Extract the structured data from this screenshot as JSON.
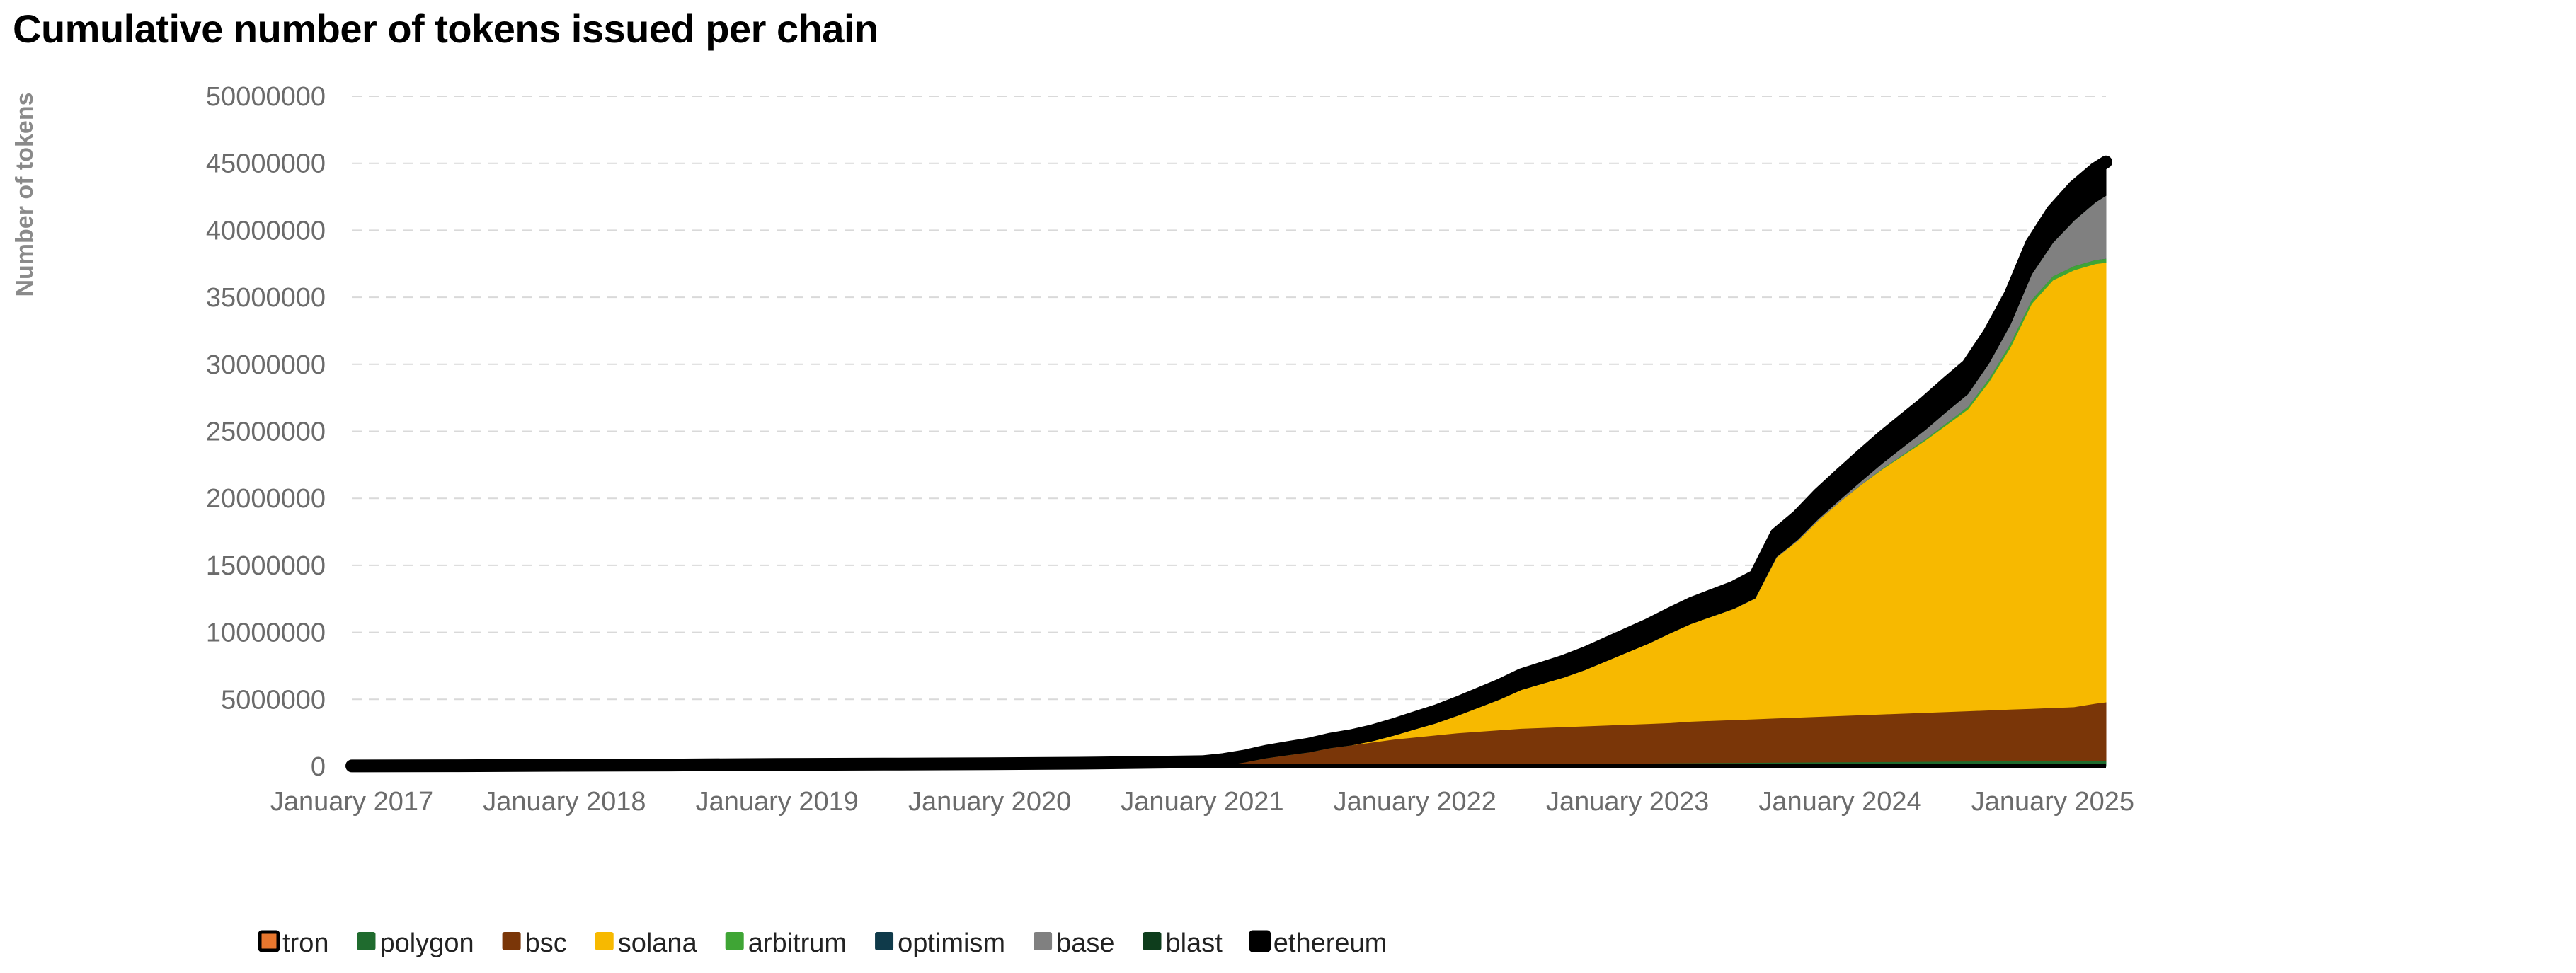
{
  "chart_data": {
    "type": "area",
    "stacked": true,
    "title": "Cumulative number of tokens issued per chain",
    "ylabel": "Number of tokens",
    "xlabel": "",
    "ylim": [
      0,
      50000000
    ],
    "y_ticks": [
      0,
      5000000,
      10000000,
      15000000,
      20000000,
      25000000,
      30000000,
      35000000,
      40000000,
      45000000,
      50000000
    ],
    "x_ticks": [
      "January 2017",
      "January 2018",
      "January 2019",
      "January 2020",
      "January 2021",
      "January 2022",
      "January 2023",
      "January 2024",
      "January 2025"
    ],
    "x_tick_years": [
      2017,
      2018,
      2019,
      2020,
      2021,
      2022,
      2023,
      2024,
      2025
    ],
    "xlim": [
      2017.0,
      2025.25
    ],
    "grid": true,
    "legend_position": "bottom-left",
    "x": [
      2017.0,
      2017.5,
      2018.0,
      2018.5,
      2019.0,
      2019.5,
      2020.0,
      2020.5,
      2021.0,
      2021.1,
      2021.2,
      2021.3,
      2021.4,
      2021.5,
      2021.6,
      2021.7,
      2021.8,
      2021.9,
      2022.0,
      2022.1,
      2022.2,
      2022.3,
      2022.4,
      2022.5,
      2022.6,
      2022.7,
      2022.8,
      2022.9,
      2023.0,
      2023.1,
      2023.2,
      2023.3,
      2023.4,
      2023.5,
      2023.6,
      2023.7,
      2023.8,
      2023.9,
      2024.0,
      2024.1,
      2024.2,
      2024.3,
      2024.4,
      2024.5,
      2024.6,
      2024.7,
      2024.8,
      2024.9,
      2025.0,
      2025.1,
      2025.2,
      2025.25
    ],
    "series": [
      {
        "name": "tron",
        "color": "#e8772e",
        "values": [
          0,
          0,
          0,
          0,
          0,
          0,
          0,
          0,
          0,
          0,
          0,
          0,
          0,
          0,
          0,
          0,
          0,
          0,
          0,
          0,
          0,
          0,
          0,
          0,
          0,
          0,
          0,
          0,
          0,
          0,
          0,
          0,
          0,
          0,
          0,
          0,
          0,
          0,
          0,
          0,
          0,
          0,
          0,
          0,
          0,
          0,
          0,
          0,
          0,
          0,
          0,
          0
        ]
      },
      {
        "name": "polygon",
        "color": "#1f6b2e",
        "values": [
          0,
          0,
          0,
          0,
          0,
          0,
          0,
          0,
          0,
          10000,
          20000,
          30000,
          50000,
          60000,
          80000,
          90000,
          100000,
          120000,
          130000,
          140000,
          150000,
          160000,
          170000,
          180000,
          190000,
          200000,
          210000,
          220000,
          230000,
          240000,
          250000,
          260000,
          270000,
          280000,
          290000,
          300000,
          310000,
          320000,
          330000,
          340000,
          350000,
          360000,
          370000,
          380000,
          390000,
          400000,
          410000,
          420000,
          430000,
          440000,
          450000,
          450000
        ]
      },
      {
        "name": "bsc",
        "color": "#7a3608",
        "values": [
          0,
          0,
          0,
          0,
          0,
          0,
          0,
          0,
          0,
          100000,
          300000,
          600000,
          800000,
          1000000,
          1300000,
          1500000,
          1700000,
          1900000,
          2050000,
          2200000,
          2350000,
          2450000,
          2550000,
          2650000,
          2700000,
          2750000,
          2800000,
          2850000,
          2900000,
          2950000,
          3000000,
          3100000,
          3150000,
          3200000,
          3250000,
          3300000,
          3350000,
          3400000,
          3450000,
          3500000,
          3550000,
          3600000,
          3650000,
          3700000,
          3750000,
          3800000,
          3850000,
          3900000,
          3950000,
          4000000,
          4250000,
          4350000
        ]
      },
      {
        "name": "solana",
        "color": "#f7b900",
        "values": [
          0,
          0,
          0,
          0,
          0,
          0,
          0,
          0,
          0,
          0,
          0,
          0,
          0,
          0,
          0,
          0,
          100000,
          300000,
          600000,
          900000,
          1300000,
          1800000,
          2300000,
          2900000,
          3300000,
          3700000,
          4200000,
          4800000,
          5400000,
          6000000,
          6700000,
          7300000,
          7800000,
          8300000,
          9000000,
          12000000,
          13200000,
          14700000,
          16000000,
          17200000,
          18300000,
          19300000,
          20300000,
          21400000,
          22500000,
          24500000,
          27000000,
          30200000,
          31900000,
          32600000,
          32800000,
          32800000
        ]
      },
      {
        "name": "arbitrum",
        "color": "#3fa535",
        "values": [
          0,
          0,
          0,
          0,
          0,
          0,
          0,
          0,
          0,
          0,
          0,
          0,
          0,
          0,
          0,
          0,
          0,
          0,
          0,
          0,
          0,
          0,
          0,
          0,
          0,
          0,
          0,
          0,
          0,
          0,
          0,
          0,
          0,
          0,
          0,
          0,
          0,
          0,
          0,
          20000,
          50000,
          80000,
          100000,
          150000,
          200000,
          250000,
          300000,
          300000,
          300000,
          300000,
          300000,
          300000
        ]
      },
      {
        "name": "optimism",
        "color": "#0f3a4a",
        "values": [
          0,
          0,
          0,
          0,
          0,
          0,
          0,
          0,
          0,
          0,
          0,
          0,
          0,
          0,
          0,
          0,
          0,
          0,
          0,
          0,
          0,
          0,
          0,
          0,
          0,
          0,
          0,
          0,
          0,
          0,
          0,
          0,
          0,
          0,
          0,
          0,
          0,
          0,
          0,
          0,
          0,
          0,
          0,
          0,
          0,
          0,
          0,
          0,
          0,
          0,
          0,
          0
        ]
      },
      {
        "name": "base",
        "color": "#808080",
        "values": [
          0,
          0,
          0,
          0,
          0,
          0,
          0,
          0,
          0,
          0,
          0,
          0,
          0,
          0,
          0,
          0,
          0,
          0,
          0,
          0,
          0,
          0,
          0,
          0,
          0,
          0,
          0,
          0,
          0,
          0,
          0,
          0,
          0,
          0,
          20000,
          40000,
          60000,
          100000,
          150000,
          250000,
          400000,
          550000,
          700000,
          850000,
          950000,
          1150000,
          1400000,
          1900000,
          2500000,
          3400000,
          4300000,
          4700000
        ]
      },
      {
        "name": "blast",
        "color": "#0e3d1c",
        "values": [
          0,
          0,
          0,
          0,
          0,
          0,
          0,
          0,
          0,
          0,
          0,
          0,
          0,
          0,
          0,
          0,
          0,
          0,
          0,
          0,
          0,
          0,
          0,
          0,
          0,
          0,
          0,
          0,
          0,
          0,
          0,
          0,
          0,
          0,
          0,
          0,
          0,
          0,
          0,
          0,
          0,
          0,
          0,
          0,
          0,
          0,
          0,
          0,
          0,
          0,
          0,
          0
        ]
      },
      {
        "name": "ethereum",
        "color": "#000000",
        "values": [
          30000,
          50000,
          80000,
          100000,
          150000,
          170000,
          200000,
          250000,
          350000,
          400000,
          450000,
          500000,
          550000,
          600000,
          650000,
          700000,
          750000,
          800000,
          850000,
          900000,
          950000,
          1000000,
          1050000,
          1100000,
          1150000,
          1200000,
          1250000,
          1300000,
          1350000,
          1400000,
          1450000,
          1500000,
          1550000,
          1600000,
          1650000,
          1700000,
          1750000,
          1800000,
          1850000,
          1900000,
          1950000,
          2000000,
          2050000,
          2100000,
          2150000,
          2200000,
          2250000,
          2300000,
          2400000,
          2500000,
          2500000,
          2500000
        ]
      }
    ]
  }
}
